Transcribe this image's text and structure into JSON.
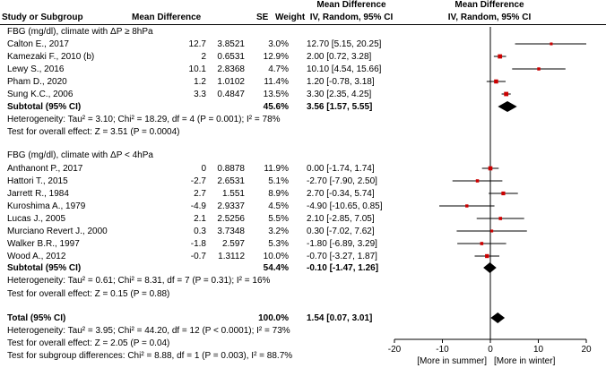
{
  "headers": {
    "study": "Study or Subgroup",
    "md": "Mean Difference",
    "se": "SE",
    "weight": "Weight",
    "ci_title": "Mean Difference",
    "ci_sub": "IV, Random, 95% CI",
    "plot_title": "Mean Difference",
    "plot_sub": "IV, Random, 95% CI"
  },
  "groups": [
    {
      "title": "FBG (mg/dl), climate with ΔP ≥ 8hPa",
      "studies": [
        {
          "name": "Calton E., 2017",
          "md": "12.7",
          "se": "3.8521",
          "weight": "3.0%",
          "ci": "12.70 [5.15, 20.25]"
        },
        {
          "name": "Kamezaki F., 2010 (b)",
          "md": "2",
          "se": "0.6531",
          "weight": "12.9%",
          "ci": "2.00 [0.72, 3.28]"
        },
        {
          "name": "Lewy S., 2016",
          "md": "10.1",
          "se": "2.8368",
          "weight": "4.7%",
          "ci": "10.10 [4.54, 15.66]"
        },
        {
          "name": "Pham D., 2020",
          "md": "1.2",
          "se": "1.0102",
          "weight": "11.4%",
          "ci": "1.20 [-0.78, 3.18]"
        },
        {
          "name": "Sung K.C., 2006",
          "md": "3.3",
          "se": "0.4847",
          "weight": "13.5%",
          "ci": "3.30 [2.35, 4.25]"
        }
      ],
      "subtotal": {
        "label": "Subtotal (95% CI)",
        "weight": "45.6%",
        "ci": "3.56 [1.57, 5.55]"
      },
      "heterogeneity": "Heterogeneity: Tau² = 3.10; Chi² = 18.29, df = 4 (P = 0.001); I² = 78%",
      "overall": "Test for overall effect: Z = 3.51 (P = 0.0004)"
    },
    {
      "title": "FBG (mg/dl), climate with ΔP < 4hPa",
      "studies": [
        {
          "name": "Anthanont P., 2017",
          "md": "0",
          "se": "0.8878",
          "weight": "11.9%",
          "ci": "0.00 [-1.74, 1.74]"
        },
        {
          "name": "Hattori T., 2015",
          "md": "-2.7",
          "se": "2.6531",
          "weight": "5.1%",
          "ci": "-2.70 [-7.90, 2.50]"
        },
        {
          "name": "Jarrett R., 1984",
          "md": "2.7",
          "se": "1.551",
          "weight": "8.9%",
          "ci": "2.70 [-0.34, 5.74]"
        },
        {
          "name": "Kuroshima A., 1979",
          "md": "-4.9",
          "se": "2.9337",
          "weight": "4.5%",
          "ci": "-4.90 [-10.65, 0.85]"
        },
        {
          "name": "Lucas J., 2005",
          "md": "2.1",
          "se": "2.5256",
          "weight": "5.5%",
          "ci": "2.10 [-2.85, 7.05]"
        },
        {
          "name": "Murciano Revert J., 2000",
          "md": "0.3",
          "se": "3.7348",
          "weight": "3.2%",
          "ci": "0.30 [-7.02, 7.62]"
        },
        {
          "name": "Walker B.R., 1997",
          "md": "-1.8",
          "se": "2.597",
          "weight": "5.3%",
          "ci": "-1.80 [-6.89, 3.29]"
        },
        {
          "name": "Wood A., 2012",
          "md": "-0.7",
          "se": "1.3112",
          "weight": "10.0%",
          "ci": "-0.70 [-3.27, 1.87]"
        }
      ],
      "subtotal": {
        "label": "Subtotal (95% CI)",
        "weight": "54.4%",
        "ci": "-0.10 [-1.47, 1.26]"
      },
      "heterogeneity": "Heterogeneity: Tau² = 0.61; Chi² = 8.31, df = 7 (P = 0.31); I² = 16%",
      "overall": "Test for overall effect: Z = 0.15 (P = 0.88)"
    }
  ],
  "total": {
    "label": "Total (95% CI)",
    "weight": "100.0%",
    "ci": "1.54 [0.07, 3.01]",
    "heterogeneity": "Heterogeneity: Tau² = 3.95; Chi² = 44.20, df = 12 (P < 0.0001); I² = 73%",
    "overall": "Test for overall effect: Z = 2.05 (P = 0.04)",
    "subgroup": "Test for subgroup differences: Chi² = 8.88, df = 1 (P = 0.003), I² = 88.7%"
  },
  "colors": {
    "point": "#cc0000",
    "line": "#000000",
    "diamond": "#000000"
  },
  "chart_data": {
    "type": "forest",
    "title": "Mean Difference IV, Random, 95% CI",
    "xlabel_left": "[More in summer]",
    "xlabel_right": "[More in winter]",
    "xlim": [
      -20,
      20
    ],
    "ticks": [
      -20,
      -10,
      0,
      10,
      20
    ],
    "tick_labels": [
      "-20",
      "-10",
      "0",
      "10",
      "20"
    ],
    "groups": [
      {
        "studies": [
          {
            "est": 12.7,
            "lo": 5.15,
            "hi": 20.25,
            "weight": 3.0
          },
          {
            "est": 2.0,
            "lo": 0.72,
            "hi": 3.28,
            "weight": 12.9
          },
          {
            "est": 10.1,
            "lo": 4.54,
            "hi": 15.66,
            "weight": 4.7
          },
          {
            "est": 1.2,
            "lo": -0.78,
            "hi": 3.18,
            "weight": 11.4
          },
          {
            "est": 3.3,
            "lo": 2.35,
            "hi": 4.25,
            "weight": 13.5
          }
        ],
        "subtotal": {
          "est": 3.56,
          "lo": 1.57,
          "hi": 5.55
        }
      },
      {
        "studies": [
          {
            "est": 0.0,
            "lo": -1.74,
            "hi": 1.74,
            "weight": 11.9
          },
          {
            "est": -2.7,
            "lo": -7.9,
            "hi": 2.5,
            "weight": 5.1
          },
          {
            "est": 2.7,
            "lo": -0.34,
            "hi": 5.74,
            "weight": 8.9
          },
          {
            "est": -4.9,
            "lo": -10.65,
            "hi": 0.85,
            "weight": 4.5
          },
          {
            "est": 2.1,
            "lo": -2.85,
            "hi": 7.05,
            "weight": 5.5
          },
          {
            "est": 0.3,
            "lo": -7.02,
            "hi": 7.62,
            "weight": 3.2
          },
          {
            "est": -1.8,
            "lo": -6.89,
            "hi": 3.29,
            "weight": 5.3
          },
          {
            "est": -0.7,
            "lo": -3.27,
            "hi": 1.87,
            "weight": 10.0
          }
        ],
        "subtotal": {
          "est": -0.1,
          "lo": -1.47,
          "hi": 1.26
        }
      }
    ],
    "total": {
      "est": 1.54,
      "lo": 0.07,
      "hi": 3.01
    }
  }
}
